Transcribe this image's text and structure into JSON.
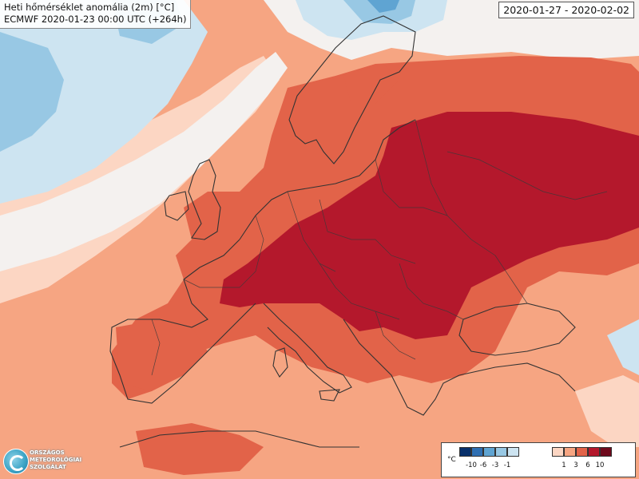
{
  "title": {
    "line1": "Heti hőmérséklet anomália (2m) [°C]",
    "line2": "ECMWF 2020-01-23 00:00 UTC (+264h)"
  },
  "date_range": "2020-01-27 - 2020-02-02",
  "legend": {
    "unit": "°C",
    "ticks": [
      "-10",
      "-6",
      "-3",
      "-1",
      "1",
      "3",
      "6",
      "10"
    ],
    "cold_colors": [
      "#08306b",
      "#2f6fb2",
      "#5fa4d2",
      "#98c8e4",
      "#cde4f1"
    ],
    "warm_colors": [
      "#fcd6c3",
      "#f6a582",
      "#e26349",
      "#b4182c",
      "#6e0a1c"
    ]
  },
  "logo": {
    "name": "ORSZÁGOS METEOROLÓGIAI SZOLGÁLAT",
    "icon": "omsz-logo-icon"
  }
}
